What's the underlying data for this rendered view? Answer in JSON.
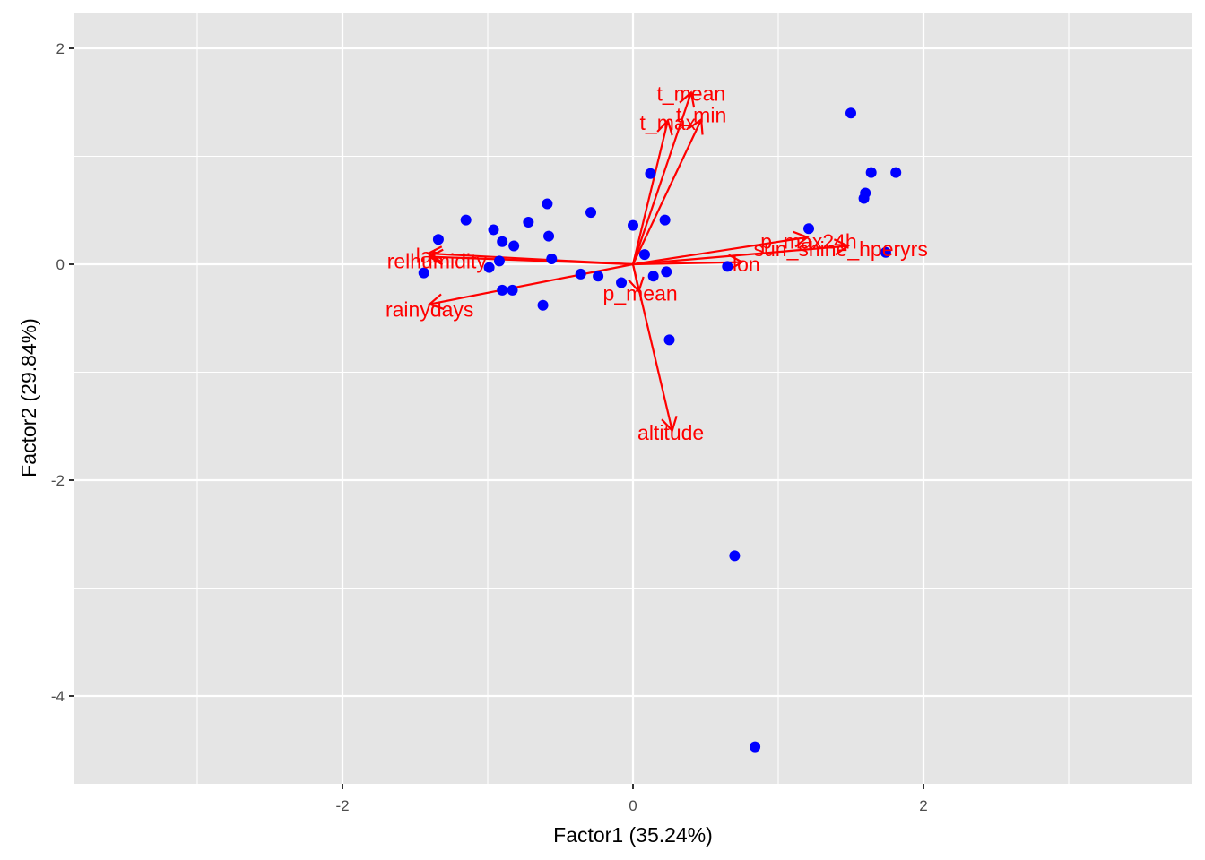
{
  "chart_data": {
    "type": "scatter",
    "subtype": "biplot",
    "title": "",
    "xlabel": "Factor1 (35.24%)",
    "ylabel": "Factor2 (29.84%)",
    "xlim": [
      -3.85,
      3.85
    ],
    "ylim": [
      -4.8,
      2.33
    ],
    "x_ticks": [
      -2,
      0,
      2
    ],
    "y_ticks": [
      2,
      0,
      -2,
      -4
    ],
    "grid": true,
    "legend": null,
    "colors": {
      "panel_bg": "#e5e5e5",
      "grid": "#ffffff",
      "points": "#0000ff",
      "vectors": "#ff0000",
      "tick_text": "#4d4d4d",
      "tick_mark": "#333333"
    },
    "points": {
      "name": "observations",
      "x": [
        -0.59,
        -1.15,
        -0.29,
        -0.72,
        -0.96,
        0.0,
        -1.34,
        -0.9,
        -0.82,
        -0.58,
        -0.56,
        0.08,
        -0.92,
        -0.99,
        -1.44,
        -0.36,
        -0.24,
        0.14,
        0.23,
        -0.08,
        -0.9,
        -0.83,
        -0.62,
        0.12,
        0.22,
        0.65,
        0.25,
        1.5,
        1.64,
        1.81,
        1.6,
        1.59,
        1.21,
        1.74,
        0.7,
        0.84
      ],
      "y": [
        0.56,
        0.41,
        0.48,
        0.39,
        0.32,
        0.36,
        0.23,
        0.21,
        0.17,
        0.26,
        0.05,
        0.09,
        0.03,
        -0.03,
        -0.08,
        -0.09,
        -0.11,
        -0.11,
        -0.07,
        -0.17,
        -0.24,
        -0.24,
        -0.38,
        0.84,
        0.41,
        -0.02,
        -0.7,
        1.4,
        0.85,
        0.85,
        0.66,
        0.61,
        0.33,
        0.11,
        -2.7,
        -4.47
      ]
    },
    "vectors": [
      {
        "name": "t_mean",
        "x": 0.4,
        "y": 1.59,
        "label_x": 0.4,
        "label_y": 1.58
      },
      {
        "name": "t_min",
        "x": 0.47,
        "y": 1.34,
        "label_x": 0.47,
        "label_y": 1.38
      },
      {
        "name": "t_max",
        "x": 0.24,
        "y": 1.33,
        "label_x": 0.24,
        "label_y": 1.31
      },
      {
        "name": "lat",
        "x": -1.41,
        "y": 0.1,
        "label_x": -1.42,
        "label_y": 0.08
      },
      {
        "name": "relhumidity",
        "x": -1.4,
        "y": 0.07,
        "label_x": -1.35,
        "label_y": 0.03
      },
      {
        "name": "rainydays",
        "x": -1.4,
        "y": -0.37,
        "label_x": -1.4,
        "label_y": -0.42
      },
      {
        "name": "p_mean",
        "x": 0.04,
        "y": -0.25,
        "label_x": 0.05,
        "label_y": -0.27
      },
      {
        "name": "altitude",
        "x": 0.27,
        "y": -1.54,
        "label_x": 0.26,
        "label_y": -1.56
      },
      {
        "name": "lon",
        "x": 0.75,
        "y": 0.02,
        "label_x": 0.78,
        "label_y": 0.0
      },
      {
        "name": "p_max24h",
        "x": 1.2,
        "y": 0.25,
        "label_x": 1.21,
        "label_y": 0.21
      },
      {
        "name": "sun_shine_hperyrs",
        "x": 1.48,
        "y": 0.17,
        "label_x": 1.43,
        "label_y": 0.14
      }
    ]
  }
}
